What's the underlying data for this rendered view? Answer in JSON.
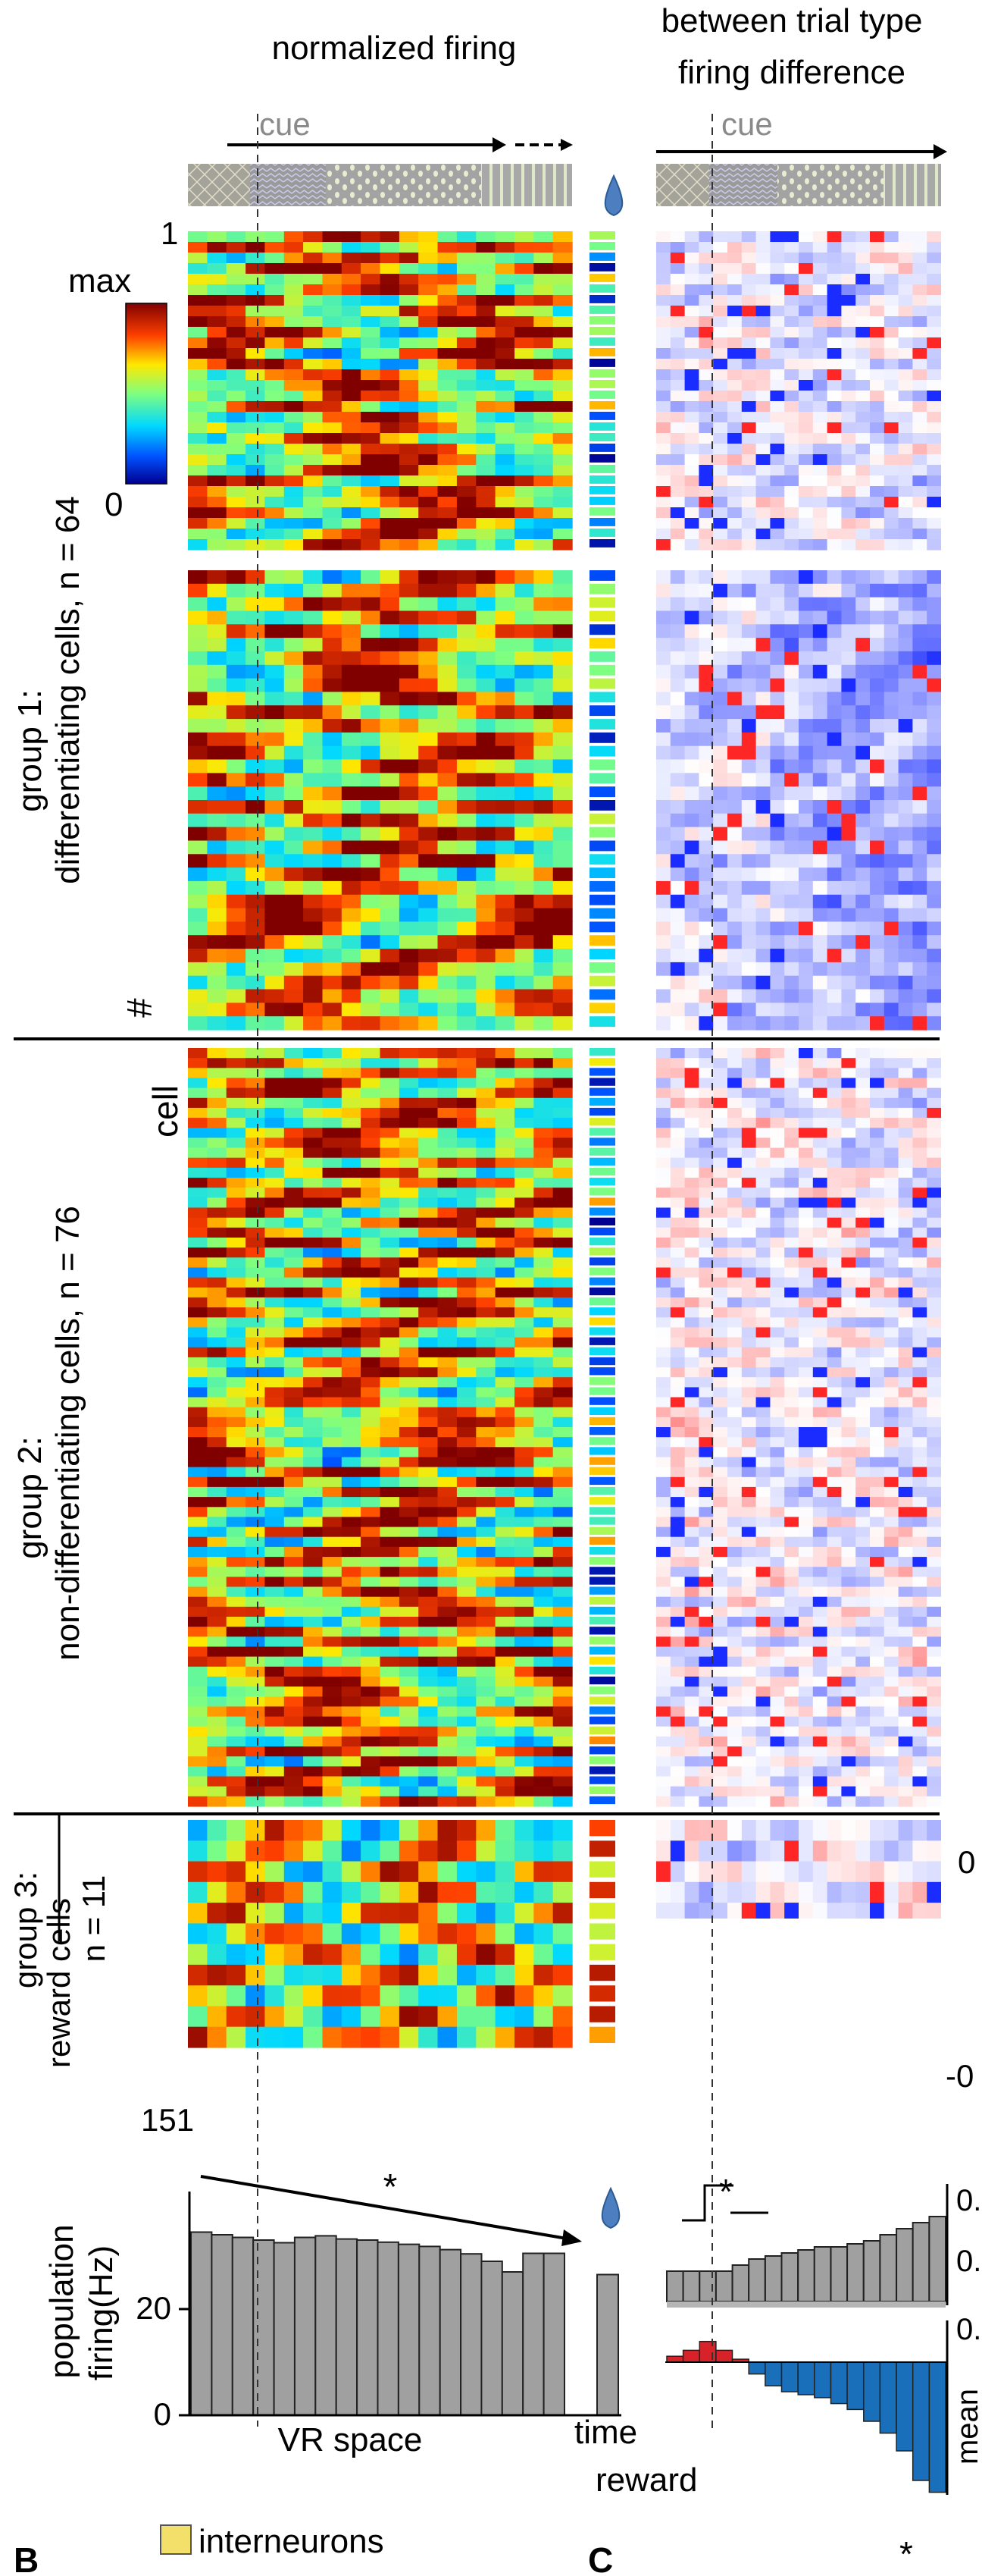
{
  "headers": {
    "left": "normalized firing",
    "right_line1": "between trial type",
    "right_line2": "firing difference"
  },
  "cue_label": "cue",
  "colorbar": {
    "max_label": "max",
    "min_label": "0"
  },
  "row_labels": {
    "first": "1",
    "last": "151",
    "hash": "#",
    "cell": "cell"
  },
  "groups": [
    {
      "line1": "group 1:",
      "line2": "differentiating cells,  n = 64",
      "count": 64
    },
    {
      "line1": "group 2:",
      "line2": "non-differentiating cells,  n = 76",
      "count": 76
    },
    {
      "line1": "group 3:",
      "line2": "reward cells",
      "line3": "n = 11",
      "count": 11
    }
  ],
  "diff_tick_labels": [
    "0",
    "-0"
  ],
  "bottom_left": {
    "ylabel_line1": "population",
    "ylabel_line2": "firing(Hz)",
    "xlabel": "VR space",
    "yticks": [
      "0",
      "20"
    ],
    "star": "*"
  },
  "bottom_mid": {
    "time": "time",
    "reward": "reward"
  },
  "bottom_right": {
    "star": "*",
    "ticks": [
      "0.",
      "0.",
      "0."
    ],
    "ylabel": "mean"
  },
  "panels": {
    "B": "B",
    "C": "C",
    "legend": "interneurons",
    "c_star": "*"
  },
  "chart_data": [
    {
      "type": "bar",
      "title": "",
      "xlabel": "VR space",
      "ylabel": "population firing(Hz)",
      "ylim": [
        0,
        38
      ],
      "grid": false,
      "values": [
        34.5,
        34.0,
        33.5,
        33.0,
        32.5,
        33.5,
        33.8,
        33.2,
        33.0,
        32.6,
        32.2,
        31.8,
        31.2,
        30.4,
        29.0,
        27.0,
        30.5,
        30.5
      ],
      "reward_bar": 26.5,
      "annotation": "*"
    },
    {
      "type": "bar",
      "title": "",
      "xlabel": "",
      "ylabel": "",
      "values_top": [
        0.05,
        0.05,
        0.05,
        0.05,
        0.06,
        0.07,
        0.075,
        0.08,
        0.085,
        0.09,
        0.09,
        0.095,
        0.1,
        0.11,
        0.12,
        0.13,
        0.14
      ],
      "values_bottom": [
        0.01,
        0.02,
        0.035,
        0.02,
        0.005,
        -0.02,
        -0.04,
        -0.05,
        -0.055,
        -0.06,
        -0.07,
        -0.08,
        -0.1,
        -0.12,
        -0.15,
        -0.2,
        -0.22
      ]
    },
    {
      "type": "heatmap",
      "title": "normalized firing",
      "rows": 151,
      "group_sizes": [
        64,
        76,
        11
      ],
      "colorbar_range": [
        "0",
        "max"
      ]
    },
    {
      "type": "heatmap",
      "title": "between trial type firing difference",
      "rows": 151,
      "group_sizes": [
        64,
        76,
        11
      ]
    }
  ]
}
